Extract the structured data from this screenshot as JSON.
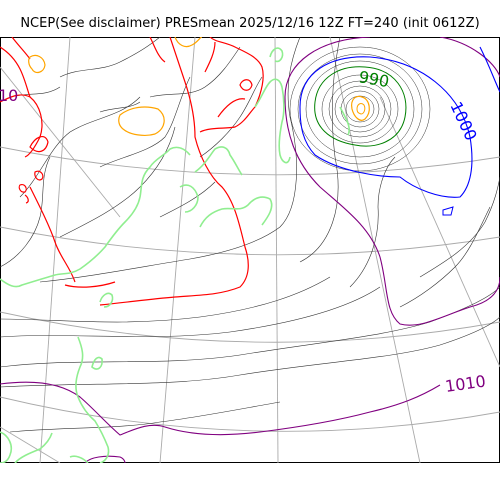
{
  "title": "NCEP(See disclaimer) PRESmean 2025/12/16 12Z FT=240 (init 0612Z)",
  "map": {
    "contour_labels": [
      "990",
      "1000",
      "1010",
      "10"
    ],
    "colors": {
      "isobar": "#333333",
      "isobar_1010": "#800080",
      "isobar_1000": "#0000ff",
      "isobar_990": "#008000",
      "low_inner": "#ffa500",
      "red_contour": "#ff0000",
      "green_contour": "#90ee90",
      "graticule": "#aaaaaa",
      "frame": "#000000"
    }
  }
}
